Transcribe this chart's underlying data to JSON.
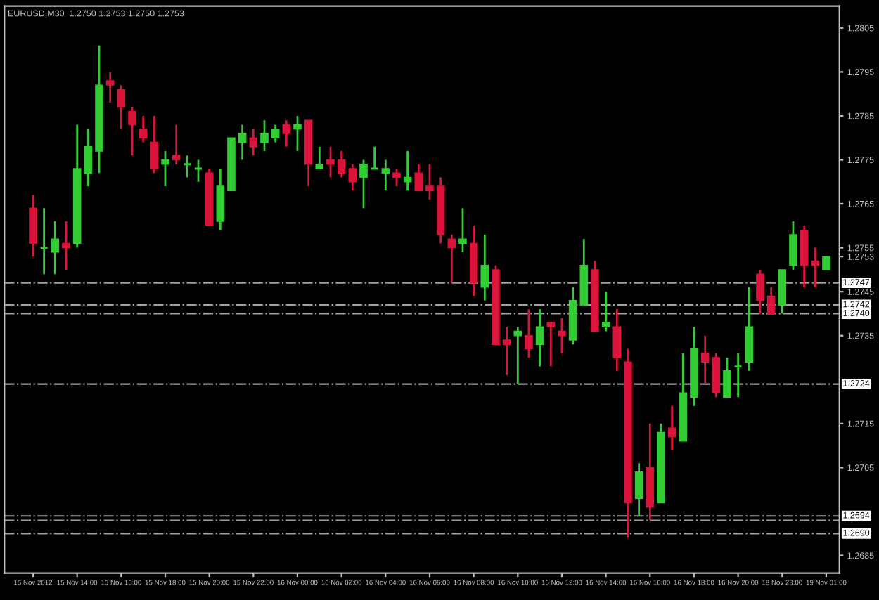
{
  "chart_data": {
    "type": "candlestick",
    "title": "EURUSD,M30  1.2750 1.2753 1.2750 1.2753",
    "categories": [
      "15 Nov 2012",
      null,
      null,
      null,
      "15 Nov 14:00",
      null,
      null,
      null,
      "15 Nov 16:00",
      null,
      null,
      null,
      "15 Nov 18:00",
      null,
      null,
      null,
      "15 Nov 20:00",
      null,
      null,
      null,
      "15 Nov 22:00",
      null,
      null,
      null,
      "16 Nov 00:00",
      null,
      null,
      null,
      "16 Nov 02:00",
      null,
      null,
      null,
      "16 Nov 04:00",
      null,
      null,
      null,
      "16 Nov 06:00",
      null,
      null,
      null,
      "16 Nov 08:00",
      null,
      null,
      null,
      "16 Nov 10:00",
      null,
      null,
      null,
      "16 Nov 12:00",
      null,
      null,
      null,
      "16 Nov 14:00",
      null,
      null,
      null,
      "16 Nov 16:00",
      null,
      null,
      null,
      "16 Nov 18:00",
      null,
      null,
      null,
      "16 Nov 20:00",
      null,
      null,
      null,
      "18 Nov 23:00",
      null,
      null,
      null,
      "19 Nov 01:00"
    ],
    "ohlc": [
      [
        1.2764,
        1.2767,
        1.2753,
        1.2756
      ],
      [
        1.2755,
        1.2764,
        1.2749,
        1.2755
      ],
      [
        1.2754,
        1.2761,
        1.2749,
        1.2757
      ],
      [
        1.2756,
        1.2761,
        1.275,
        1.2755
      ],
      [
        1.2756,
        1.2783,
        1.2755,
        1.2773
      ],
      [
        1.2772,
        1.2782,
        1.2769,
        1.2778
      ],
      [
        1.2777,
        1.2801,
        1.2772,
        1.2792
      ],
      [
        1.2793,
        1.2795,
        1.2788,
        1.2792
      ],
      [
        1.2791,
        1.2792,
        1.2782,
        1.2787
      ],
      [
        1.2786,
        1.2787,
        1.2776,
        1.2783
      ],
      [
        1.2782,
        1.2785,
        1.2779,
        1.278
      ],
      [
        1.2779,
        1.2785,
        1.2772,
        1.2773
      ],
      [
        1.2774,
        1.2777,
        1.2769,
        1.2775
      ],
      [
        1.2776,
        1.2783,
        1.2774,
        1.2775
      ],
      [
        1.2774,
        1.2776,
        1.2771,
        1.2774
      ],
      [
        1.2773,
        1.2775,
        1.277,
        1.2773
      ],
      [
        1.2772,
        1.2773,
        1.276,
        1.276
      ],
      [
        1.2761,
        1.2773,
        1.2759,
        1.2769
      ],
      [
        1.2768,
        1.278,
        1.2768,
        1.278
      ],
      [
        1.2779,
        1.2783,
        1.2775,
        1.2781
      ],
      [
        1.278,
        1.2782,
        1.2776,
        1.2778
      ],
      [
        1.2779,
        1.2784,
        1.2777,
        1.2781
      ],
      [
        1.278,
        1.2783,
        1.2779,
        1.2782
      ],
      [
        1.2783,
        1.2784,
        1.2778,
        1.2781
      ],
      [
        1.2782,
        1.2785,
        1.2777,
        1.2783
      ],
      [
        1.2784,
        1.2784,
        1.2769,
        1.2774
      ],
      [
        1.2773,
        1.2778,
        1.2773,
        1.2774
      ],
      [
        1.2775,
        1.2778,
        1.2771,
        1.2774
      ],
      [
        1.2775,
        1.2777,
        1.2771,
        1.2772
      ],
      [
        1.2773,
        1.2774,
        1.2768,
        1.277
      ],
      [
        1.2771,
        1.2775,
        1.2764,
        1.2774
      ],
      [
        1.2773,
        1.2778,
        1.2773,
        1.2773
      ],
      [
        1.2772,
        1.2775,
        1.2768,
        1.2773
      ],
      [
        1.2772,
        1.2773,
        1.2769,
        1.2771
      ],
      [
        1.277,
        1.2777,
        1.2768,
        1.2771
      ],
      [
        1.2772,
        1.2774,
        1.2768,
        1.2768
      ],
      [
        1.2769,
        1.2774,
        1.2766,
        1.2768
      ],
      [
        1.2769,
        1.2771,
        1.2756,
        1.2758
      ],
      [
        1.2757,
        1.2758,
        1.2747,
        1.2755
      ],
      [
        1.2756,
        1.2764,
        1.2754,
        1.2757
      ],
      [
        1.2756,
        1.276,
        1.2744,
        1.2747
      ],
      [
        1.2746,
        1.2758,
        1.2743,
        1.2751
      ],
      [
        1.275,
        1.2751,
        1.2733,
        1.2733
      ],
      [
        1.2734,
        1.2737,
        1.2726,
        1.2733
      ],
      [
        1.2735,
        1.2737,
        1.2724,
        1.2736
      ],
      [
        1.2735,
        1.2741,
        1.273,
        1.2732
      ],
      [
        1.2733,
        1.2741,
        1.2728,
        1.2737
      ],
      [
        1.2738,
        1.2738,
        1.2728,
        1.2737
      ],
      [
        1.2736,
        1.2739,
        1.2731,
        1.2735
      ],
      [
        1.2734,
        1.2746,
        1.2733,
        1.2743
      ],
      [
        1.2742,
        1.2757,
        1.2742,
        1.2751
      ],
      [
        1.275,
        1.2752,
        1.2736,
        1.2736
      ],
      [
        1.2737,
        1.2745,
        1.2736,
        1.2738
      ],
      [
        1.2737,
        1.2741,
        1.2727,
        1.273
      ],
      [
        1.2729,
        1.2732,
        1.2689,
        1.2697
      ],
      [
        1.2698,
        1.2706,
        1.2694,
        1.2704
      ],
      [
        1.2705,
        1.2715,
        1.2693,
        1.2696
      ],
      [
        1.2697,
        1.2715,
        1.2697,
        1.2713
      ],
      [
        1.2714,
        1.2719,
        1.2709,
        1.2712
      ],
      [
        1.2711,
        1.2731,
        1.2711,
        1.2722
      ],
      [
        1.2721,
        1.2737,
        1.2719,
        1.2732
      ],
      [
        1.2731,
        1.2735,
        1.2724,
        1.2729
      ],
      [
        1.273,
        1.2731,
        1.2721,
        1.2722
      ],
      [
        1.2721,
        1.273,
        1.2721,
        1.2727
      ],
      [
        1.2728,
        1.2731,
        1.2721,
        1.2728
      ],
      [
        1.2729,
        1.2746,
        1.2727,
        1.2737
      ],
      [
        1.2749,
        1.275,
        1.274,
        1.2743
      ],
      [
        1.2744,
        1.2746,
        1.274,
        1.274
      ],
      [
        1.2742,
        1.275,
        1.274,
        1.275
      ],
      [
        1.2751,
        1.2761,
        1.275,
        1.2758
      ],
      [
        1.2759,
        1.276,
        1.2746,
        1.2751
      ],
      [
        1.2752,
        1.2755,
        1.2746,
        1.2751
      ],
      [
        1.275,
        1.2753,
        1.275,
        1.2753
      ]
    ],
    "colors": [
      "#dc143c",
      "#32cd32",
      "#32cd32",
      "#dc143c",
      "#32cd32",
      "#32cd32",
      "#32cd32",
      "#dc143c",
      "#dc143c",
      "#dc143c",
      "#dc143c",
      "#dc143c",
      "#32cd32",
      "#dc143c",
      "#32cd32",
      "#32cd32",
      "#dc143c",
      "#32cd32",
      "#32cd32",
      "#32cd32",
      "#dc143c",
      "#32cd32",
      "#32cd32",
      "#dc143c",
      "#32cd32",
      "#dc143c",
      "#32cd32",
      "#dc143c",
      "#dc143c",
      "#dc143c",
      "#32cd32",
      "#32cd32",
      "#32cd32",
      "#dc143c",
      "#32cd32",
      "#dc143c",
      "#dc143c",
      "#dc143c",
      "#dc143c",
      "#32cd32",
      "#dc143c",
      "#32cd32",
      "#dc143c",
      "#dc143c",
      "#32cd32",
      "#dc143c",
      "#32cd32",
      "#dc143c",
      "#dc143c",
      "#32cd32",
      "#32cd32",
      "#dc143c",
      "#32cd32",
      "#dc143c",
      "#dc143c",
      "#32cd32",
      "#dc143c",
      "#32cd32",
      "#dc143c",
      "#32cd32",
      "#32cd32",
      "#dc143c",
      "#dc143c",
      "#32cd32",
      "#32cd32",
      "#32cd32",
      "#dc143c",
      "#dc143c",
      "#32cd32",
      "#32cd32",
      "#dc143c",
      "#dc143c",
      "#32cd32"
    ],
    "ylim": [
      1.2681,
      1.281
    ],
    "yticks": [
      1.2805,
      1.2795,
      1.2785,
      1.2775,
      1.2765,
      1.2755,
      1.2745,
      1.2735,
      1.2715,
      1.2705,
      1.2685,
      {
        "value": 1.2753,
        "label": "1.2753"
      }
    ],
    "ref_lines": [
      {
        "axis": "y",
        "value": 1.2747,
        "label": "1.2747",
        "color": "#a0a0a0",
        "line_style": "dashdot"
      },
      {
        "axis": "y",
        "value": 1.2742,
        "label": "1.2742",
        "color": "#a0a0a0",
        "line_style": "dashdot"
      },
      {
        "axis": "y",
        "value": 1.274,
        "label": "1.2740",
        "color": "#a0a0a0",
        "line_style": "dashdot"
      },
      {
        "axis": "y",
        "value": 1.2724,
        "label": "1.2724",
        "color": "#a0a0a0",
        "line_style": "dashdot"
      },
      {
        "axis": "y",
        "value": 1.2694,
        "label": "1.2694",
        "color": "#a0a0a0",
        "line_style": "dashdot"
      },
      {
        "axis": "y",
        "value": 1.2693,
        "color": "#a0a0a0",
        "line_style": "dashdot"
      },
      {
        "axis": "y",
        "value": 1.269,
        "label": "1.2690",
        "color": "#a0a0a0",
        "line_style": "dashdot"
      }
    ],
    "grid": false
  }
}
